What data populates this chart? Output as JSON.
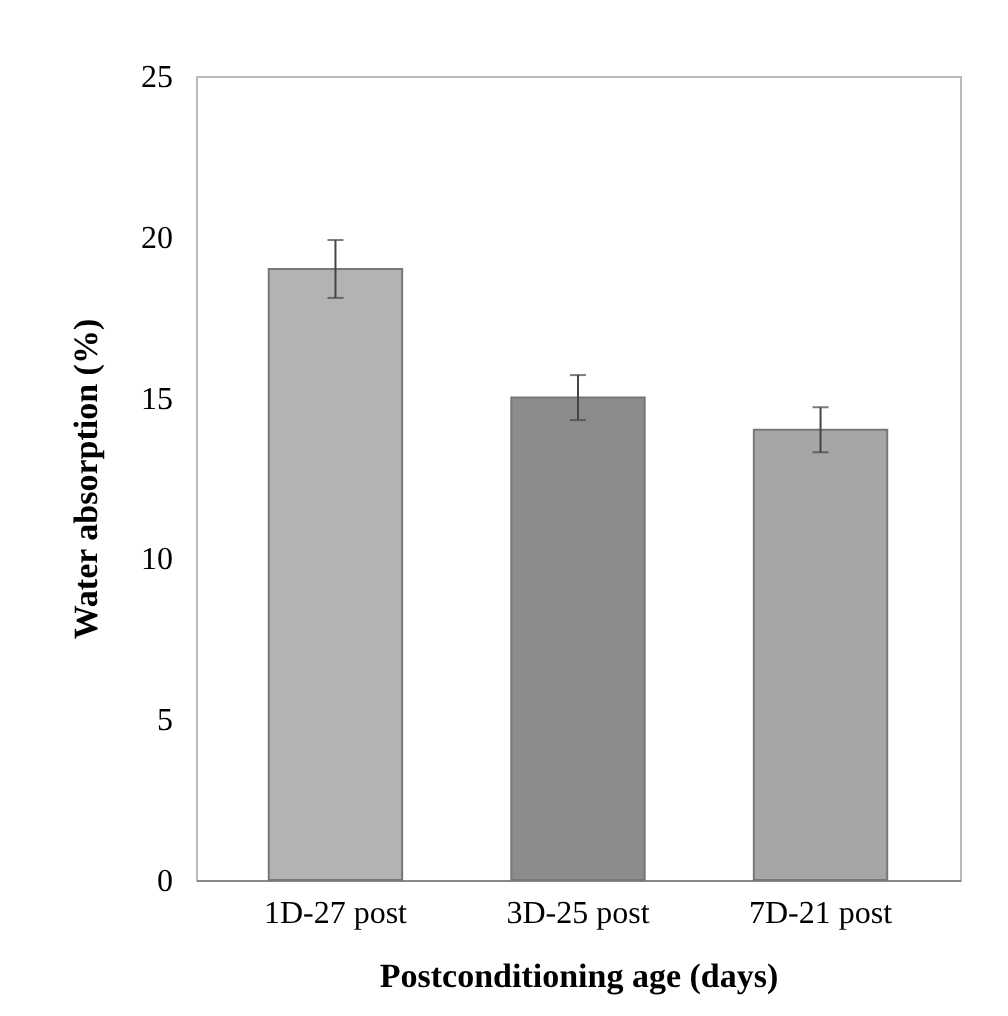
{
  "chart_data": {
    "type": "bar",
    "xlabel": "Postconditioning age (days)",
    "ylabel": "Water absorption (%)",
    "categories": [
      "1D-27 post",
      "3D-25 post",
      "7D-21 post"
    ],
    "values": [
      19,
      15,
      14
    ],
    "errors": [
      0.9,
      0.7,
      0.7
    ],
    "colors": [
      "#b3b3b3",
      "#8c8c8c",
      "#a6a6a6"
    ],
    "ylim": [
      0,
      25
    ],
    "yticks": [
      0,
      5,
      10,
      15,
      20,
      25
    ],
    "grid": false
  }
}
